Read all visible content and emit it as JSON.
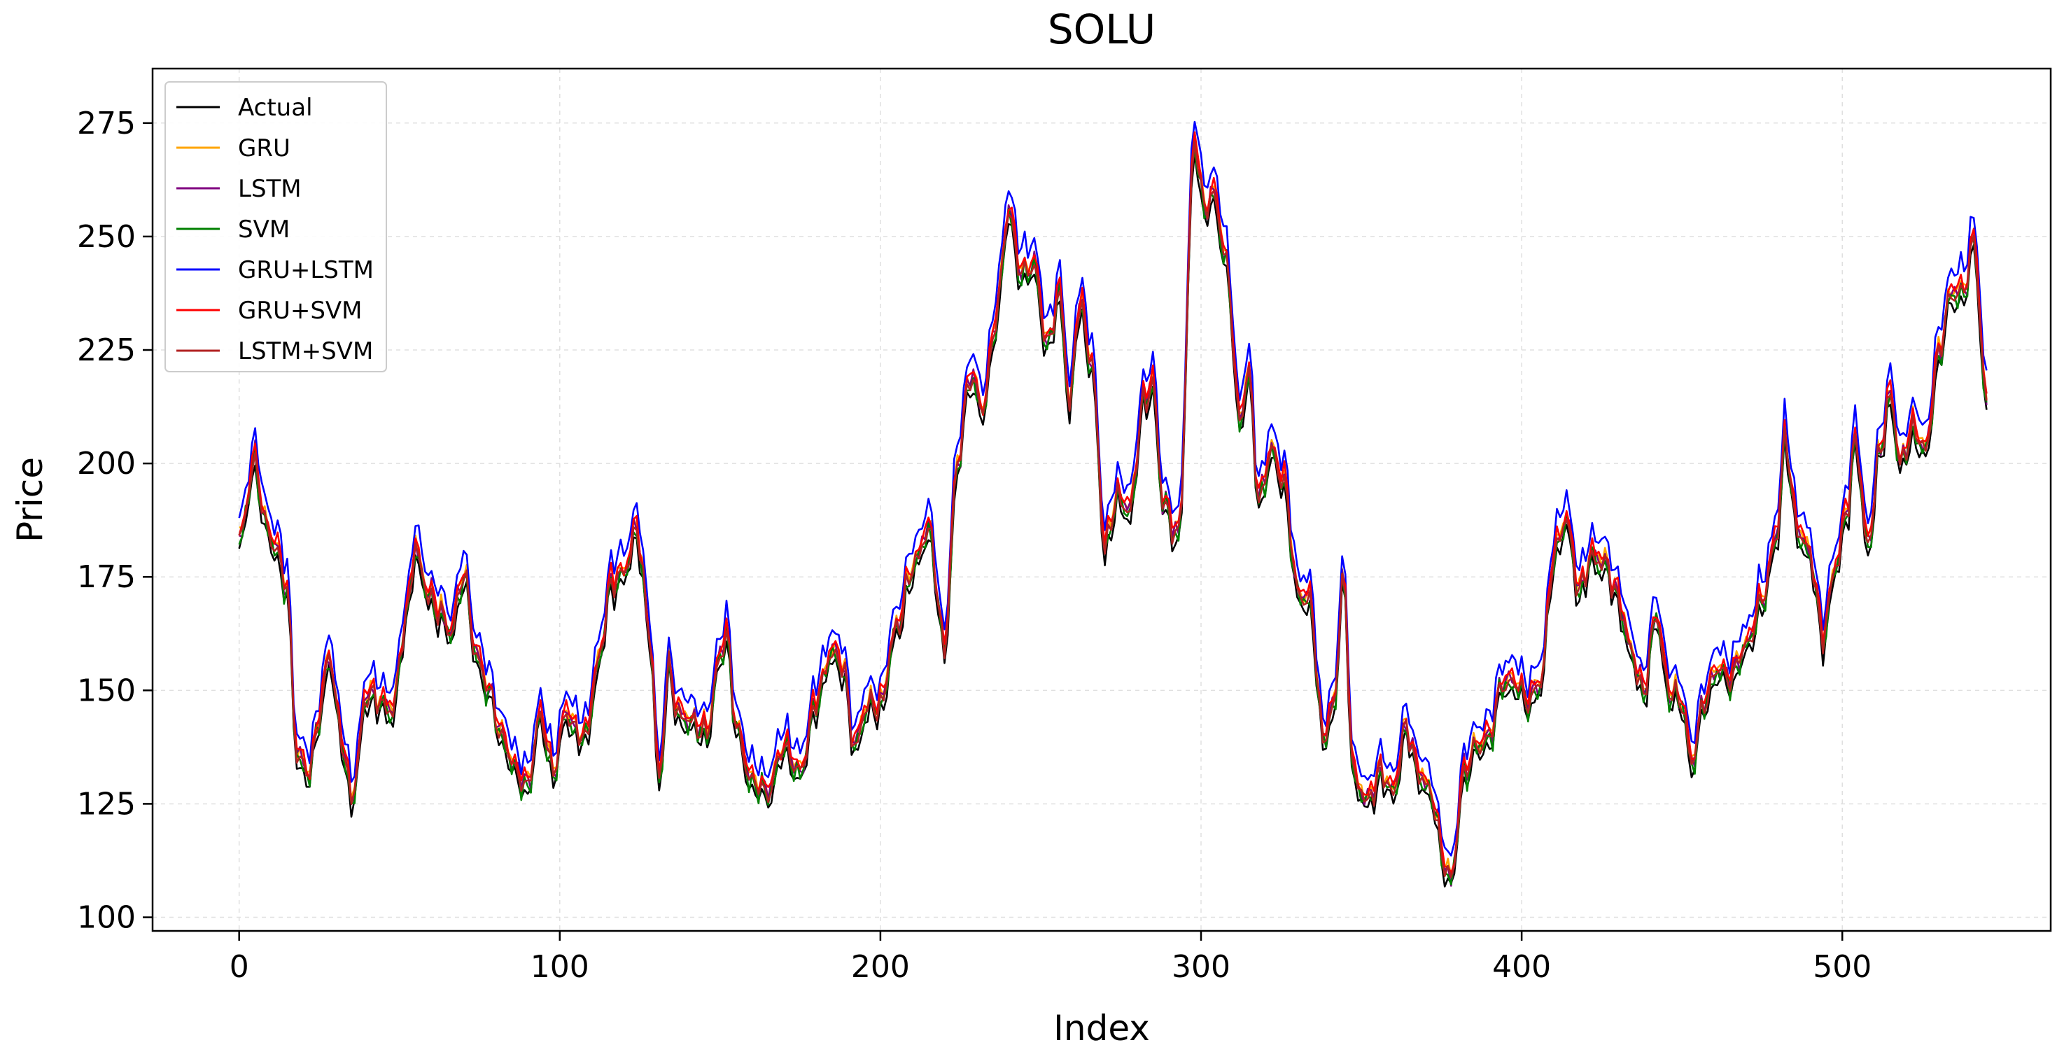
{
  "chart_data": {
    "type": "line",
    "title": "SOLU",
    "xlabel": "Index",
    "ylabel": "Price",
    "xlim": [
      -27,
      565
    ],
    "ylim": [
      97,
      287
    ],
    "xticks": [
      0,
      100,
      200,
      300,
      400,
      500
    ],
    "xtick_labels": [
      "0",
      "100",
      "200",
      "300",
      "400",
      "500"
    ],
    "yticks": [
      100,
      125,
      150,
      175,
      200,
      225,
      250,
      275
    ],
    "ytick_labels": [
      "100",
      "125",
      "150",
      "175",
      "200",
      "225",
      "250",
      "275"
    ],
    "grid": true,
    "legend_position": "top-left",
    "x_count": 546,
    "base_series": [
      [
        0,
        183
      ],
      [
        5,
        201
      ],
      [
        8,
        187
      ],
      [
        12,
        181
      ],
      [
        15,
        172
      ],
      [
        18,
        136
      ],
      [
        22,
        132
      ],
      [
        25,
        145
      ],
      [
        28,
        158
      ],
      [
        32,
        140
      ],
      [
        35,
        126
      ],
      [
        40,
        150
      ],
      [
        43,
        148
      ],
      [
        48,
        146
      ],
      [
        52,
        166
      ],
      [
        55,
        182
      ],
      [
        58,
        173
      ],
      [
        62,
        168
      ],
      [
        66,
        163
      ],
      [
        70,
        176
      ],
      [
        74,
        158
      ],
      [
        78,
        150
      ],
      [
        82,
        140
      ],
      [
        86,
        133
      ],
      [
        90,
        129
      ],
      [
        94,
        145
      ],
      [
        98,
        132
      ],
      [
        102,
        146
      ],
      [
        105,
        141
      ],
      [
        108,
        140
      ],
      [
        112,
        156
      ],
      [
        116,
        174
      ],
      [
        120,
        176
      ],
      [
        124,
        186
      ],
      [
        128,
        163
      ],
      [
        131,
        130
      ],
      [
        134,
        155
      ],
      [
        137,
        145
      ],
      [
        142,
        143
      ],
      [
        146,
        141
      ],
      [
        150,
        158
      ],
      [
        152,
        163
      ],
      [
        155,
        142
      ],
      [
        160,
        130
      ],
      [
        165,
        128
      ],
      [
        170,
        138
      ],
      [
        175,
        132
      ],
      [
        180,
        148
      ],
      [
        185,
        159
      ],
      [
        188,
        156
      ],
      [
        192,
        138
      ],
      [
        196,
        147
      ],
      [
        200,
        147
      ],
      [
        205,
        164
      ],
      [
        210,
        177
      ],
      [
        215,
        186
      ],
      [
        220,
        160
      ],
      [
        224,
        200
      ],
      [
        228,
        220
      ],
      [
        232,
        212
      ],
      [
        236,
        232
      ],
      [
        240,
        256
      ],
      [
        244,
        242
      ],
      [
        248,
        244
      ],
      [
        252,
        226
      ],
      [
        256,
        238
      ],
      [
        259,
        212
      ],
      [
        262,
        236
      ],
      [
        266,
        222
      ],
      [
        270,
        182
      ],
      [
        274,
        193
      ],
      [
        278,
        190
      ],
      [
        282,
        214
      ],
      [
        285,
        218
      ],
      [
        288,
        192
      ],
      [
        293,
        184
      ],
      [
        298,
        272
      ],
      [
        301,
        256
      ],
      [
        304,
        260
      ],
      [
        308,
        244
      ],
      [
        312,
        210
      ],
      [
        315,
        220
      ],
      [
        318,
        192
      ],
      [
        322,
        203
      ],
      [
        326,
        196
      ],
      [
        330,
        172
      ],
      [
        334,
        170
      ],
      [
        338,
        140
      ],
      [
        342,
        148
      ],
      [
        344,
        176
      ],
      [
        348,
        130
      ],
      [
        352,
        126
      ],
      [
        356,
        132
      ],
      [
        360,
        128
      ],
      [
        364,
        142
      ],
      [
        368,
        132
      ],
      [
        372,
        127
      ],
      [
        376,
        112
      ],
      [
        378,
        108
      ],
      [
        382,
        132
      ],
      [
        386,
        138
      ],
      [
        390,
        140
      ],
      [
        394,
        152
      ],
      [
        398,
        152
      ],
      [
        402,
        148
      ],
      [
        406,
        152
      ],
      [
        410,
        180
      ],
      [
        414,
        188
      ],
      [
        418,
        172
      ],
      [
        422,
        180
      ],
      [
        426,
        178
      ],
      [
        430,
        171
      ],
      [
        434,
        159
      ],
      [
        438,
        150
      ],
      [
        442,
        167
      ],
      [
        446,
        150
      ],
      [
        450,
        148
      ],
      [
        453,
        134
      ],
      [
        457,
        148
      ],
      [
        461,
        155
      ],
      [
        465,
        153
      ],
      [
        470,
        160
      ],
      [
        475,
        170
      ],
      [
        480,
        186
      ],
      [
        482,
        206
      ],
      [
        486,
        186
      ],
      [
        490,
        180
      ],
      [
        494,
        162
      ],
      [
        498,
        178
      ],
      [
        502,
        192
      ],
      [
        504,
        206
      ],
      [
        508,
        182
      ],
      [
        512,
        204
      ],
      [
        515,
        216
      ],
      [
        518,
        200
      ],
      [
        522,
        208
      ],
      [
        526,
        203
      ],
      [
        530,
        224
      ],
      [
        534,
        238
      ],
      [
        538,
        238
      ],
      [
        541,
        250
      ],
      [
        545,
        213
      ]
    ],
    "series": [
      {
        "name": "Actual",
        "color": "#000000",
        "offset": -2.5,
        "amp": 1.2,
        "phase": 0.0
      },
      {
        "name": "GRU",
        "color": "#ffa500",
        "offset": 0.5,
        "amp": 1.5,
        "phase": 1.1
      },
      {
        "name": "LSTM",
        "color": "#800080",
        "offset": 0.0,
        "amp": 1.3,
        "phase": 2.3
      },
      {
        "name": "SVM",
        "color": "#008000",
        "offset": -1.0,
        "amp": 1.6,
        "phase": 3.4
      },
      {
        "name": "GRU+LSTM",
        "color": "#0000ff",
        "offset": 4.5,
        "amp": 1.2,
        "phase": 4.6
      },
      {
        "name": "GRU+SVM",
        "color": "#ff0000",
        "offset": 1.0,
        "amp": 1.1,
        "phase": 5.7
      },
      {
        "name": "LSTM+SVM",
        "color": "#b22222",
        "offset": -0.5,
        "amp": 1.0,
        "phase": 0.6
      }
    ]
  }
}
